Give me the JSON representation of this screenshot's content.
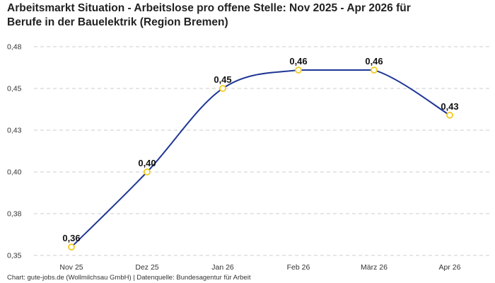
{
  "title": {
    "line1": "Arbeitsmarkt Situation - Arbeitslose pro offene Stelle: Nov 2025 - Apr 2026 für",
    "line2": "Berufe in der Bauelektrik (Region Bremen)"
  },
  "footer": "Chart: gute-jobs.de (Wollmilchsau GmbH) | Datenquelle: Bundesagentur für Arbeit",
  "colors": {
    "line": "#1f3796",
    "marker_stroke": "#f2cc1d",
    "marker_fill": "#ffffff",
    "grid": "#cccccc"
  },
  "chart_data": {
    "type": "line",
    "title": "Arbeitsmarkt Situation - Arbeitslose pro offene Stelle: Nov 2025 - Apr 2026 für Berufe in der Bauelektrik (Region Bremen)",
    "categories": [
      "Nov 25",
      "Dez 25",
      "Jan 26",
      "Feb 26",
      "März 26",
      "Apr 26"
    ],
    "values": [
      0.355,
      0.4,
      0.45,
      0.461,
      0.461,
      0.434
    ],
    "data_labels": [
      "0,36",
      "0,40",
      "0,45",
      "0,46",
      "0,46",
      "0,43"
    ],
    "y_ticks": [
      0.35,
      0.375,
      0.4,
      0.425,
      0.45,
      0.475
    ],
    "y_tick_labels": [
      "0,35",
      "0,38",
      "0,40",
      "0,43",
      "0,45",
      "0,48"
    ],
    "ylim": [
      0.35,
      0.475
    ],
    "xlabel": "",
    "ylabel": "",
    "grid": true,
    "legend": "none"
  }
}
